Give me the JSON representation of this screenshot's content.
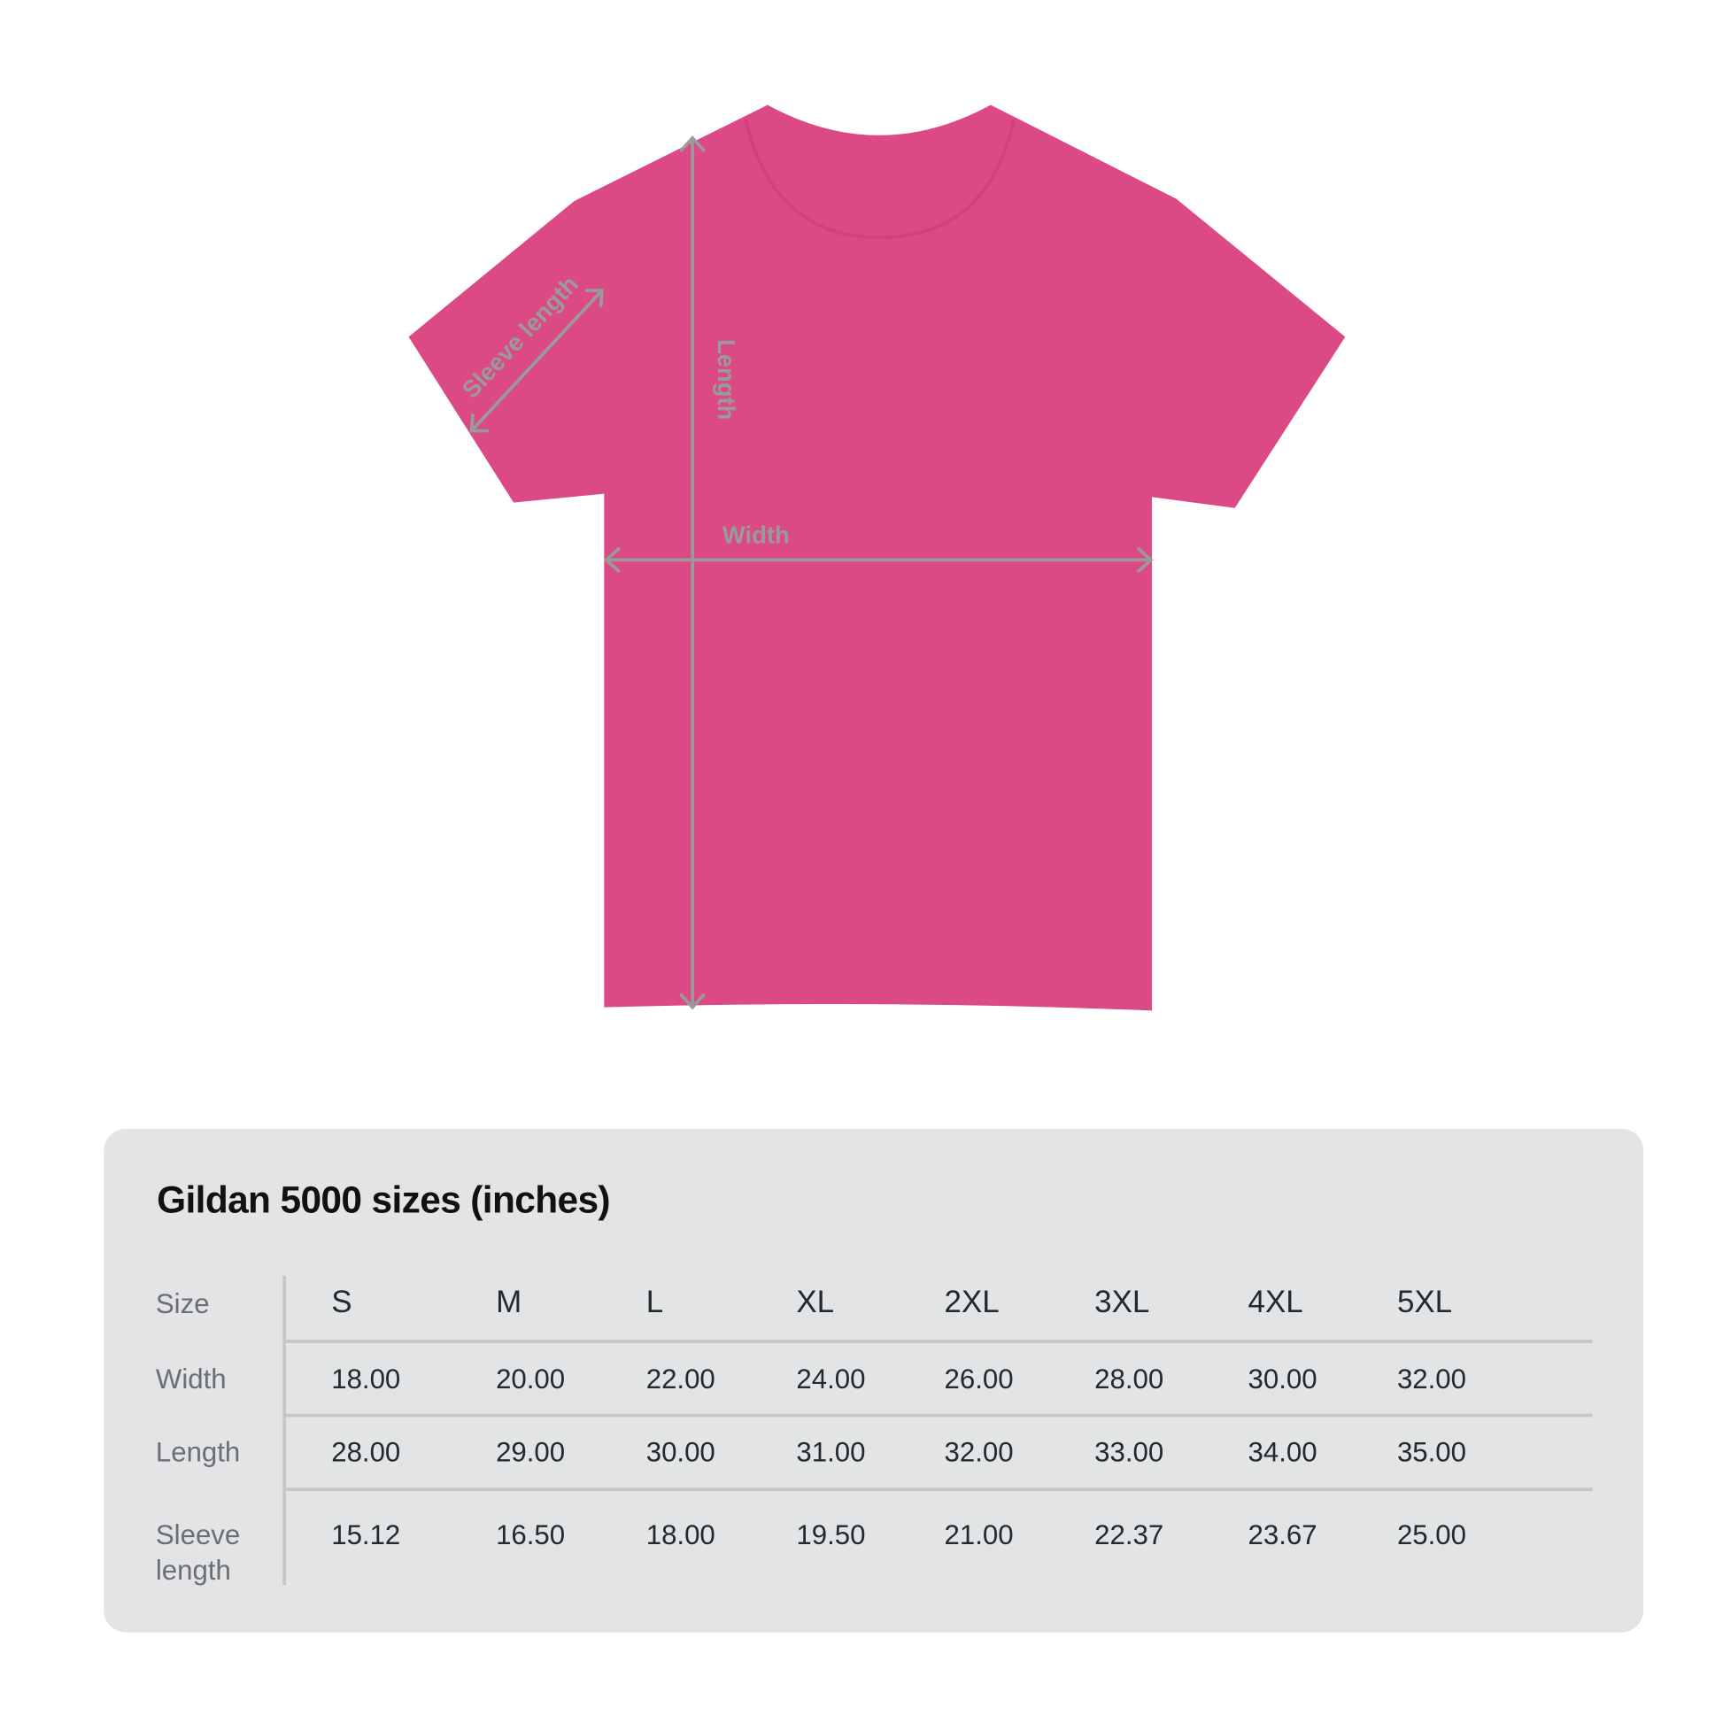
{
  "diagram": {
    "shirt_color": "#dc4a86",
    "guide_color": "#9a9a9a",
    "labels": {
      "sleeve": "Sleeve length",
      "length": "Length",
      "width": "Width"
    }
  },
  "table": {
    "title": "Gildan 5000 sizes (inches)",
    "panel_color": "#e3e4e6",
    "row_labels": [
      "Size",
      "Width",
      "Length",
      "Sleeve length"
    ],
    "sizes": [
      "S",
      "M",
      "L",
      "XL",
      "2XL",
      "3XL",
      "4XL",
      "5XL"
    ],
    "rows": [
      [
        "18.00",
        "20.00",
        "22.00",
        "24.00",
        "26.00",
        "28.00",
        "30.00",
        "32.00"
      ],
      [
        "28.00",
        "29.00",
        "30.00",
        "31.00",
        "32.00",
        "33.00",
        "34.00",
        "35.00"
      ],
      [
        "15.12",
        "16.50",
        "18.00",
        "19.50",
        "21.00",
        "22.37",
        "23.67",
        "25.00"
      ]
    ]
  }
}
